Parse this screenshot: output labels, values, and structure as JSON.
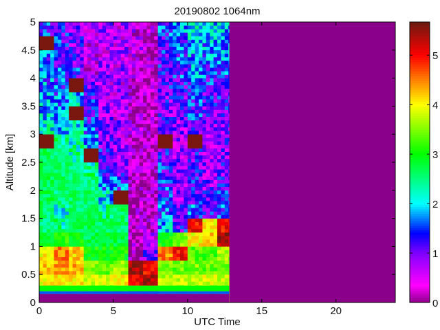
{
  "chart_data": {
    "type": "heatmap",
    "title": "20190802 1064nm",
    "xlabel": "UTC Time",
    "ylabel": "Altitude [km]",
    "xlim": [
      0,
      24
    ],
    "ylim": [
      0,
      5
    ],
    "x_ticks": [
      "0",
      "5",
      "10",
      "15",
      "20"
    ],
    "y_ticks": [
      "0",
      "0.5",
      "1",
      "1.5",
      "2",
      "2.5",
      "3",
      "3.5",
      "4",
      "4.5",
      "5"
    ],
    "colorbar": {
      "range": [
        0,
        5.67
      ],
      "ticks": [
        "0",
        "1",
        "2",
        "3",
        "4",
        "5"
      ],
      "colormap": [
        "#8b008b",
        "#ff00ff",
        "#8000ff",
        "#0000ff",
        "#00ffff",
        "#00ff00",
        "#ffff00",
        "#ff8000",
        "#ff0000",
        "#6b1a10"
      ]
    },
    "data_end_hour": 12.8,
    "time_bin_centers_h": [
      0.5,
      1.5,
      2.5,
      3.5,
      4.5,
      5.5,
      6.5,
      7.5,
      8.5,
      9.5,
      10.5,
      11.5,
      12.5
    ],
    "altitude_bin_centers_km": [
      0.25,
      0.5,
      0.75,
      1,
      1.25,
      1.5,
      1.75,
      2,
      2.25,
      2.5,
      2.75,
      3,
      3.25,
      3.5,
      3.75,
      4,
      4.25,
      4.5,
      4.75,
      5
    ],
    "values": [
      [
        3.8,
        4.0,
        4.2,
        4.0,
        2.8,
        2.5,
        2.6,
        2.7,
        2.7,
        2.6,
        2.6,
        5.6,
        2.2,
        2.0,
        1.8,
        1.7,
        1.6,
        1.5,
        5.6,
        1.4
      ],
      [
        3.8,
        4.1,
        4.4,
        4.5,
        3.2,
        2.4,
        2.3,
        2.5,
        2.6,
        2.6,
        2.5,
        2.4,
        2.0,
        1.8,
        1.6,
        1.5,
        1.4,
        1.3,
        1.3,
        1.2
      ],
      [
        3.7,
        4.0,
        4.3,
        4.2,
        3.0,
        2.6,
        2.6,
        2.6,
        2.6,
        2.5,
        2.4,
        2.3,
        2.2,
        5.6,
        2.0,
        5.6,
        1.3,
        1.1,
        1.0,
        1.0
      ],
      [
        3.5,
        3.8,
        3.5,
        3.0,
        2.7,
        2.7,
        2.6,
        2.6,
        2.5,
        2.4,
        5.6,
        1.8,
        1.5,
        1.2,
        1.2,
        0.9,
        0.6,
        0.5,
        0.5,
        0.5
      ],
      [
        3.6,
        3.8,
        3.4,
        3.0,
        2.8,
        2.6,
        2.4,
        2.0,
        1.7,
        1.4,
        1.2,
        1.0,
        0.9,
        0.8,
        0.8,
        0.7,
        0.7,
        0.7,
        0.7,
        0.7
      ],
      [
        4.5,
        4.0,
        3.6,
        3.0,
        2.7,
        2.6,
        2.6,
        5.6,
        1.5,
        1.0,
        0.8,
        0.8,
        0.8,
        0.7,
        0.7,
        0.7,
        0.7,
        0.7,
        0.7,
        0.7
      ],
      [
        5.2,
        5.0,
        5.4,
        0.3,
        0.3,
        0.3,
        0.3,
        0.3,
        0.3,
        0.3,
        0.3,
        0.3,
        0.4,
        0.4,
        0.4,
        0.4,
        0.5,
        0.5,
        0.5,
        0.5
      ],
      [
        5.3,
        5.4,
        5.0,
        1.0,
        0.5,
        0.3,
        0.2,
        0.2,
        0.2,
        0.2,
        0.2,
        0.2,
        0.3,
        0.3,
        0.3,
        0.3,
        0.3,
        0.3,
        0.3,
        0.3
      ],
      [
        3.8,
        3.7,
        3.5,
        4.5,
        3.0,
        1.8,
        1.6,
        1.5,
        1.4,
        1.3,
        1.2,
        5.6,
        1.1,
        1.0,
        1.0,
        1.1,
        1.2,
        1.2,
        1.3,
        1.4
      ],
      [
        3.8,
        3.7,
        3.4,
        5.0,
        3.5,
        1.2,
        1.0,
        0.9,
        0.9,
        0.8,
        0.8,
        0.8,
        0.9,
        1.0,
        1.1,
        1.2,
        1.4,
        1.5,
        1.6,
        1.7
      ],
      [
        3.9,
        3.8,
        3.5,
        3.3,
        4.0,
        5.0,
        1.5,
        1.3,
        1.2,
        1.1,
        1.1,
        5.6,
        1.2,
        1.3,
        1.4,
        1.5,
        1.7,
        1.8,
        1.9,
        2.0
      ],
      [
        3.9,
        3.8,
        3.4,
        3.2,
        4.2,
        4.0,
        1.2,
        1.0,
        0.9,
        0.8,
        0.8,
        0.8,
        0.9,
        1.0,
        1.1,
        1.3,
        1.5,
        1.7,
        1.8,
        1.9
      ],
      [
        3.9,
        3.8,
        3.5,
        3.6,
        5.4,
        5.0,
        1.4,
        1.2,
        1.1,
        1.0,
        1.0,
        1.0,
        1.0,
        1.1,
        1.2,
        1.4,
        1.6,
        1.7,
        1.8,
        1.9
      ]
    ]
  }
}
